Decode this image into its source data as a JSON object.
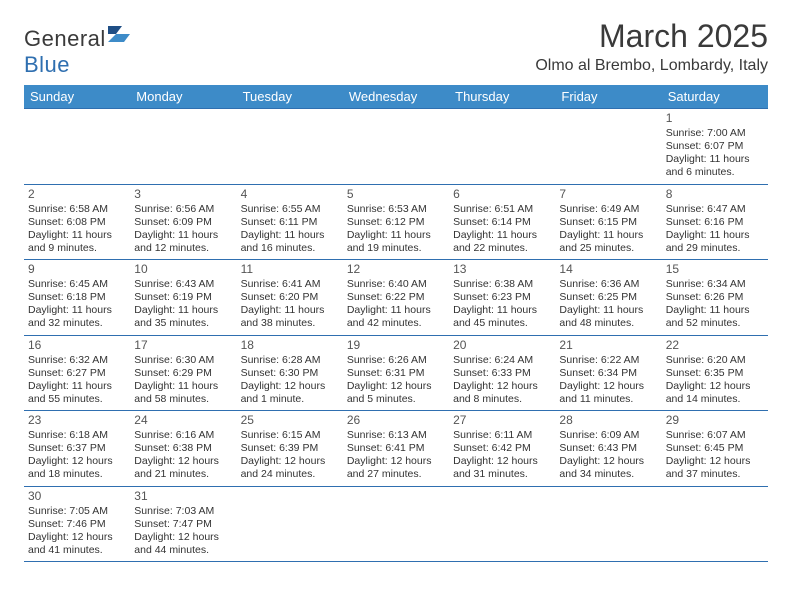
{
  "brand": {
    "name_a": "General",
    "name_b": "Blue"
  },
  "title": {
    "month": "March 2025",
    "location": "Olmo al Brembo, Lombardy, Italy"
  },
  "calendar": {
    "type": "table",
    "header_bg": "#3d8bc8",
    "header_fg": "#ffffff",
    "border_color": "#2f6fb0",
    "body_font_size": 10.5,
    "daynum_color": "#555555",
    "columns": [
      "Sunday",
      "Monday",
      "Tuesday",
      "Wednesday",
      "Thursday",
      "Friday",
      "Saturday"
    ],
    "weeks": [
      [
        null,
        null,
        null,
        null,
        null,
        null,
        {
          "n": "1",
          "sr": "Sunrise: 7:00 AM",
          "ss": "Sunset: 6:07 PM",
          "d1": "Daylight: 11 hours",
          "d2": "and 6 minutes."
        }
      ],
      [
        {
          "n": "2",
          "sr": "Sunrise: 6:58 AM",
          "ss": "Sunset: 6:08 PM",
          "d1": "Daylight: 11 hours",
          "d2": "and 9 minutes."
        },
        {
          "n": "3",
          "sr": "Sunrise: 6:56 AM",
          "ss": "Sunset: 6:09 PM",
          "d1": "Daylight: 11 hours",
          "d2": "and 12 minutes."
        },
        {
          "n": "4",
          "sr": "Sunrise: 6:55 AM",
          "ss": "Sunset: 6:11 PM",
          "d1": "Daylight: 11 hours",
          "d2": "and 16 minutes."
        },
        {
          "n": "5",
          "sr": "Sunrise: 6:53 AM",
          "ss": "Sunset: 6:12 PM",
          "d1": "Daylight: 11 hours",
          "d2": "and 19 minutes."
        },
        {
          "n": "6",
          "sr": "Sunrise: 6:51 AM",
          "ss": "Sunset: 6:14 PM",
          "d1": "Daylight: 11 hours",
          "d2": "and 22 minutes."
        },
        {
          "n": "7",
          "sr": "Sunrise: 6:49 AM",
          "ss": "Sunset: 6:15 PM",
          "d1": "Daylight: 11 hours",
          "d2": "and 25 minutes."
        },
        {
          "n": "8",
          "sr": "Sunrise: 6:47 AM",
          "ss": "Sunset: 6:16 PM",
          "d1": "Daylight: 11 hours",
          "d2": "and 29 minutes."
        }
      ],
      [
        {
          "n": "9",
          "sr": "Sunrise: 6:45 AM",
          "ss": "Sunset: 6:18 PM",
          "d1": "Daylight: 11 hours",
          "d2": "and 32 minutes."
        },
        {
          "n": "10",
          "sr": "Sunrise: 6:43 AM",
          "ss": "Sunset: 6:19 PM",
          "d1": "Daylight: 11 hours",
          "d2": "and 35 minutes."
        },
        {
          "n": "11",
          "sr": "Sunrise: 6:41 AM",
          "ss": "Sunset: 6:20 PM",
          "d1": "Daylight: 11 hours",
          "d2": "and 38 minutes."
        },
        {
          "n": "12",
          "sr": "Sunrise: 6:40 AM",
          "ss": "Sunset: 6:22 PM",
          "d1": "Daylight: 11 hours",
          "d2": "and 42 minutes."
        },
        {
          "n": "13",
          "sr": "Sunrise: 6:38 AM",
          "ss": "Sunset: 6:23 PM",
          "d1": "Daylight: 11 hours",
          "d2": "and 45 minutes."
        },
        {
          "n": "14",
          "sr": "Sunrise: 6:36 AM",
          "ss": "Sunset: 6:25 PM",
          "d1": "Daylight: 11 hours",
          "d2": "and 48 minutes."
        },
        {
          "n": "15",
          "sr": "Sunrise: 6:34 AM",
          "ss": "Sunset: 6:26 PM",
          "d1": "Daylight: 11 hours",
          "d2": "and 52 minutes."
        }
      ],
      [
        {
          "n": "16",
          "sr": "Sunrise: 6:32 AM",
          "ss": "Sunset: 6:27 PM",
          "d1": "Daylight: 11 hours",
          "d2": "and 55 minutes."
        },
        {
          "n": "17",
          "sr": "Sunrise: 6:30 AM",
          "ss": "Sunset: 6:29 PM",
          "d1": "Daylight: 11 hours",
          "d2": "and 58 minutes."
        },
        {
          "n": "18",
          "sr": "Sunrise: 6:28 AM",
          "ss": "Sunset: 6:30 PM",
          "d1": "Daylight: 12 hours",
          "d2": "and 1 minute."
        },
        {
          "n": "19",
          "sr": "Sunrise: 6:26 AM",
          "ss": "Sunset: 6:31 PM",
          "d1": "Daylight: 12 hours",
          "d2": "and 5 minutes."
        },
        {
          "n": "20",
          "sr": "Sunrise: 6:24 AM",
          "ss": "Sunset: 6:33 PM",
          "d1": "Daylight: 12 hours",
          "d2": "and 8 minutes."
        },
        {
          "n": "21",
          "sr": "Sunrise: 6:22 AM",
          "ss": "Sunset: 6:34 PM",
          "d1": "Daylight: 12 hours",
          "d2": "and 11 minutes."
        },
        {
          "n": "22",
          "sr": "Sunrise: 6:20 AM",
          "ss": "Sunset: 6:35 PM",
          "d1": "Daylight: 12 hours",
          "d2": "and 14 minutes."
        }
      ],
      [
        {
          "n": "23",
          "sr": "Sunrise: 6:18 AM",
          "ss": "Sunset: 6:37 PM",
          "d1": "Daylight: 12 hours",
          "d2": "and 18 minutes."
        },
        {
          "n": "24",
          "sr": "Sunrise: 6:16 AM",
          "ss": "Sunset: 6:38 PM",
          "d1": "Daylight: 12 hours",
          "d2": "and 21 minutes."
        },
        {
          "n": "25",
          "sr": "Sunrise: 6:15 AM",
          "ss": "Sunset: 6:39 PM",
          "d1": "Daylight: 12 hours",
          "d2": "and 24 minutes."
        },
        {
          "n": "26",
          "sr": "Sunrise: 6:13 AM",
          "ss": "Sunset: 6:41 PM",
          "d1": "Daylight: 12 hours",
          "d2": "and 27 minutes."
        },
        {
          "n": "27",
          "sr": "Sunrise: 6:11 AM",
          "ss": "Sunset: 6:42 PM",
          "d1": "Daylight: 12 hours",
          "d2": "and 31 minutes."
        },
        {
          "n": "28",
          "sr": "Sunrise: 6:09 AM",
          "ss": "Sunset: 6:43 PM",
          "d1": "Daylight: 12 hours",
          "d2": "and 34 minutes."
        },
        {
          "n": "29",
          "sr": "Sunrise: 6:07 AM",
          "ss": "Sunset: 6:45 PM",
          "d1": "Daylight: 12 hours",
          "d2": "and 37 minutes."
        }
      ],
      [
        {
          "n": "30",
          "sr": "Sunrise: 7:05 AM",
          "ss": "Sunset: 7:46 PM",
          "d1": "Daylight: 12 hours",
          "d2": "and 41 minutes."
        },
        {
          "n": "31",
          "sr": "Sunrise: 7:03 AM",
          "ss": "Sunset: 7:47 PM",
          "d1": "Daylight: 12 hours",
          "d2": "and 44 minutes."
        },
        null,
        null,
        null,
        null,
        null
      ]
    ]
  }
}
